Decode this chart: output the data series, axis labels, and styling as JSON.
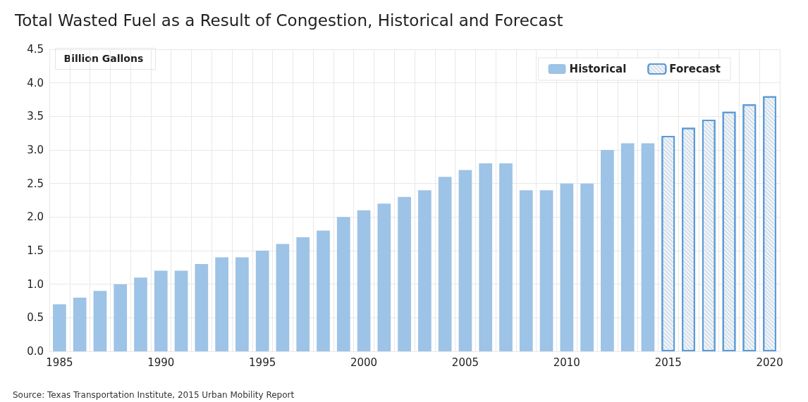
{
  "chart_data": {
    "type": "bar",
    "title": "Total Wasted Fuel as a Result of Congestion, Historical and Forecast",
    "ylabel": "Billion Gallons",
    "annotations": [
      "Source: Texas Transportation Institute, 2015 Urban Mobility Report"
    ],
    "categories": [
      "1985",
      null,
      null,
      null,
      null,
      "1990",
      null,
      null,
      null,
      null,
      "1995",
      null,
      null,
      null,
      null,
      "2000",
      null,
      null,
      null,
      null,
      "2005",
      null,
      null,
      null,
      null,
      "2010",
      null,
      null,
      null,
      null,
      "2015",
      null,
      null,
      null,
      null,
      "2020"
    ],
    "series": [
      {
        "name": "Historical",
        "color": "#9dc3e6",
        "values": [
          0.7,
          0.8,
          0.9,
          1.0,
          1.1,
          1.2,
          1.2,
          1.3,
          1.4,
          1.4,
          1.5,
          1.6,
          1.7,
          1.8,
          2.0,
          2.1,
          2.2,
          2.3,
          2.4,
          2.6,
          2.7,
          2.8,
          2.8,
          2.4,
          2.4,
          2.5,
          2.5,
          3.0,
          3.1,
          3.1,
          null,
          null,
          null,
          null,
          null,
          null
        ]
      },
      {
        "name": "Forecast",
        "color": "#5b9bd5",
        "values": [
          null,
          null,
          null,
          null,
          null,
          null,
          null,
          null,
          null,
          null,
          null,
          null,
          null,
          null,
          null,
          null,
          null,
          null,
          null,
          null,
          null,
          null,
          null,
          null,
          null,
          null,
          null,
          null,
          null,
          null,
          3.21,
          3.33,
          3.45,
          3.57,
          3.68,
          3.8
        ]
      }
    ],
    "ylim": [
      0,
      4.5
    ],
    "yticks": [
      {
        "value": 0,
        "label": "0.0"
      },
      0.5,
      {
        "value": 1,
        "label": "1.0"
      },
      1.5,
      {
        "value": 2,
        "label": "2.0"
      },
      2.5,
      {
        "value": 3,
        "label": "3.0"
      },
      3.5,
      {
        "value": 4,
        "label": "4.0"
      },
      4.5
    ],
    "grid": true,
    "legend": "top right"
  }
}
